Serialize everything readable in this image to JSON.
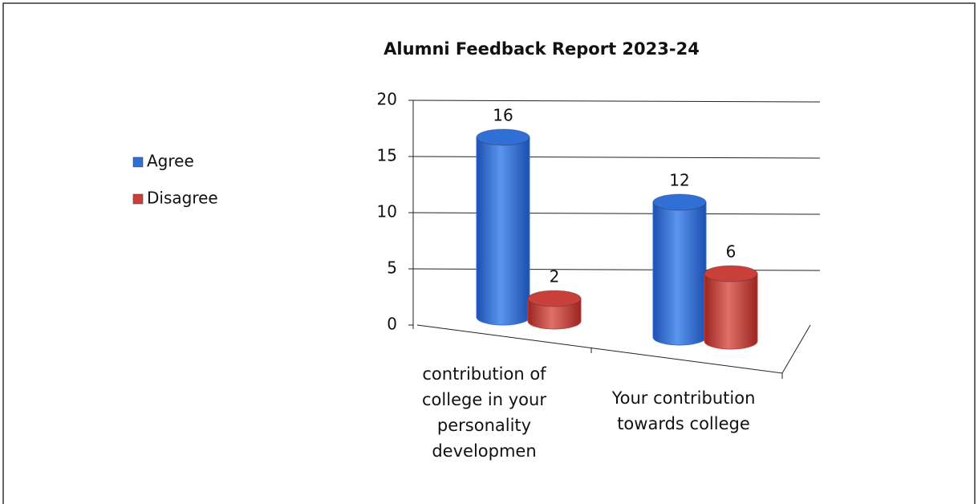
{
  "chart_data": {
    "type": "bar3d",
    "title": "Alumni Feedback Report 2023-24",
    "categories": [
      "contribution of college in your personality developmen",
      "Your contribution towards college"
    ],
    "series": [
      {
        "name": "Agree",
        "color": "#2f6fd6",
        "values": [
          16,
          12
        ]
      },
      {
        "name": "Disagree",
        "color": "#c9403a",
        "values": [
          2,
          6
        ]
      }
    ],
    "ylim": [
      0,
      20
    ],
    "yticks": [
      0,
      5,
      10,
      15,
      20
    ],
    "grid": true,
    "legend": "left"
  }
}
